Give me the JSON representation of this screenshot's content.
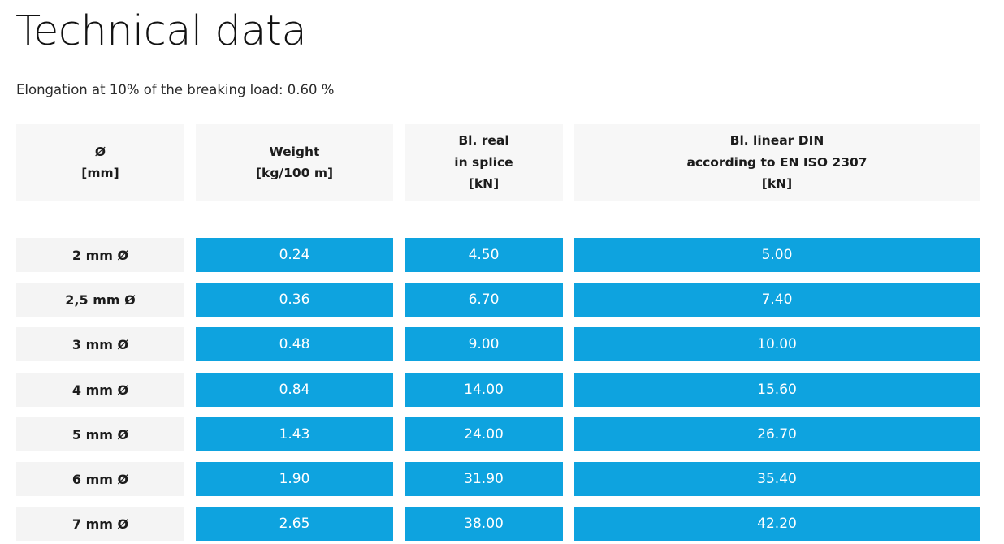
{
  "page": {
    "title": "Technical data",
    "elongation_note": "Elongation at 10% of the breaking load: 0.60 %"
  },
  "table": {
    "headers": [
      {
        "lines": [
          "Ø",
          "[mm]"
        ]
      },
      {
        "lines": [
          "Weight",
          "[kg/100 m]"
        ]
      },
      {
        "lines": [
          "Bl. real",
          "in splice",
          "[kN]"
        ]
      },
      {
        "lines": [
          "Bl. linear DIN",
          "according to EN ISO 2307",
          "[kN]"
        ]
      }
    ],
    "rows": [
      {
        "diameter": "2 mm Ø",
        "weight": "0.24",
        "bl_real": "4.50",
        "bl_linear": "5.00"
      },
      {
        "diameter": "2,5 mm Ø",
        "weight": "0.36",
        "bl_real": "6.70",
        "bl_linear": "7.40"
      },
      {
        "diameter": "3 mm Ø",
        "weight": "0.48",
        "bl_real": "9.00",
        "bl_linear": "10.00"
      },
      {
        "diameter": "4 mm Ø",
        "weight": "0.84",
        "bl_real": "14.00",
        "bl_linear": "15.60"
      },
      {
        "diameter": "5 mm Ø",
        "weight": "1.43",
        "bl_real": "24.00",
        "bl_linear": "26.70"
      },
      {
        "diameter": "6 mm Ø",
        "weight": "1.90",
        "bl_real": "31.90",
        "bl_linear": "35.40"
      },
      {
        "diameter": "7 mm Ø",
        "weight": "2.65",
        "bl_real": "38.00",
        "bl_linear": "42.20"
      }
    ]
  },
  "colors": {
    "value_cell_bg": "#0ea3df",
    "header_cell_bg": "#f7f7f7",
    "label_cell_bg": "#f4f4f4"
  }
}
